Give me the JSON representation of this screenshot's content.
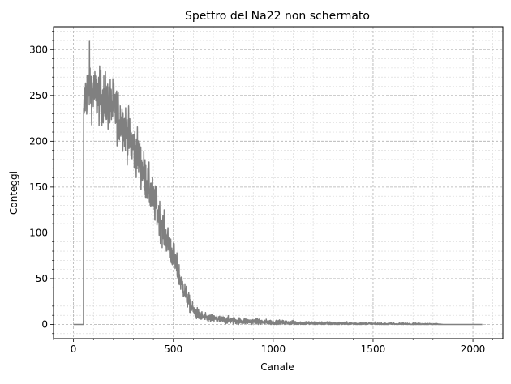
{
  "chart_data": {
    "type": "line",
    "title": "Spettro del Na22 non schermato",
    "xlabel": "Canale",
    "ylabel": "Conteggi",
    "xlim": [
      -100,
      2150
    ],
    "ylim": [
      -15.5,
      325
    ],
    "xticks": [
      0,
      500,
      1000,
      1500,
      2000
    ],
    "yticks": [
      0,
      50,
      100,
      150,
      200,
      250,
      300
    ],
    "grid": "major and minor, dashed",
    "legend": "none",
    "series": [
      {
        "color": "#808080",
        "profile_channels": [
          0,
          50,
          51,
          55,
          60,
          70,
          80,
          90,
          100,
          120,
          150,
          180,
          200,
          230,
          260,
          290,
          320,
          340,
          360,
          380,
          400,
          420,
          440,
          460,
          480,
          500,
          520,
          540,
          560,
          580,
          600,
          630,
          660,
          700,
          750,
          800,
          850,
          900,
          950,
          1000,
          1100,
          1200,
          1300,
          1400,
          1500,
          1600,
          1700,
          1800,
          1850,
          1900,
          2000,
          2047
        ],
        "profile_counts": [
          0,
          0,
          222,
          240,
          252,
          255,
          262,
          258,
          252,
          250,
          246,
          240,
          238,
          226,
          214,
          198,
          188,
          172,
          160,
          148,
          136,
          124,
          110,
          97,
          86,
          74,
          60,
          46,
          34,
          23,
          15,
          10,
          7,
          6,
          5,
          4.2,
          3.6,
          3,
          2.6,
          2.2,
          1.7,
          1.3,
          1,
          0.8,
          0.6,
          0.5,
          0.4,
          0.3,
          0,
          0,
          0,
          0
        ],
        "noise_until_channel": 1850,
        "peak_channel": 80,
        "peak_count": 310
      }
    ]
  }
}
